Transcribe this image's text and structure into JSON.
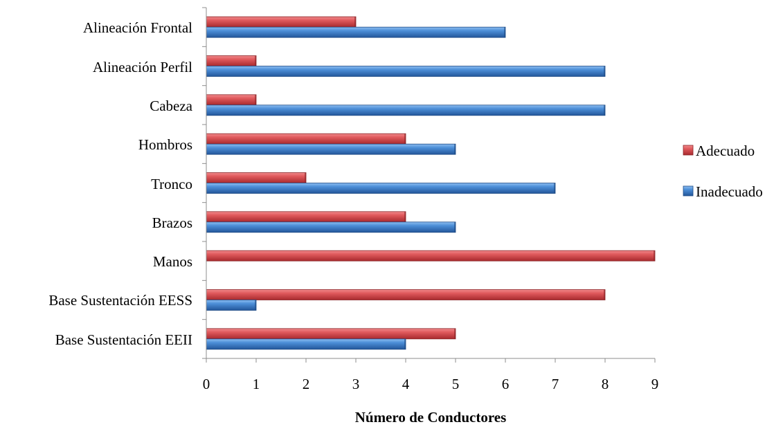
{
  "chart_data": {
    "type": "bar",
    "orientation": "horizontal",
    "categories": [
      "Alineación Frontal",
      "Alineación Perfil",
      "Cabeza",
      "Hombros",
      "Tronco",
      "Brazos",
      "Manos",
      "Base Sustentación EESS",
      "Base Sustentación EEII"
    ],
    "series": [
      {
        "name": "Adecuado",
        "values": [
          3,
          1,
          1,
          4,
          2,
          4,
          9,
          8,
          5
        ],
        "color": "#d9474b"
      },
      {
        "name": "Inadecuado",
        "values": [
          6,
          8,
          8,
          5,
          7,
          5,
          0,
          1,
          4
        ],
        "color": "#3f7fc9"
      }
    ],
    "xlabel": "Número de Conductores",
    "ylabel": "",
    "xlim": [
      0,
      9
    ],
    "xticks": [
      "0",
      "1",
      "2",
      "3",
      "4",
      "5",
      "6",
      "7",
      "8",
      "9"
    ],
    "grid": false,
    "legend_position": "right",
    "style": "3d-cylinder bars"
  }
}
